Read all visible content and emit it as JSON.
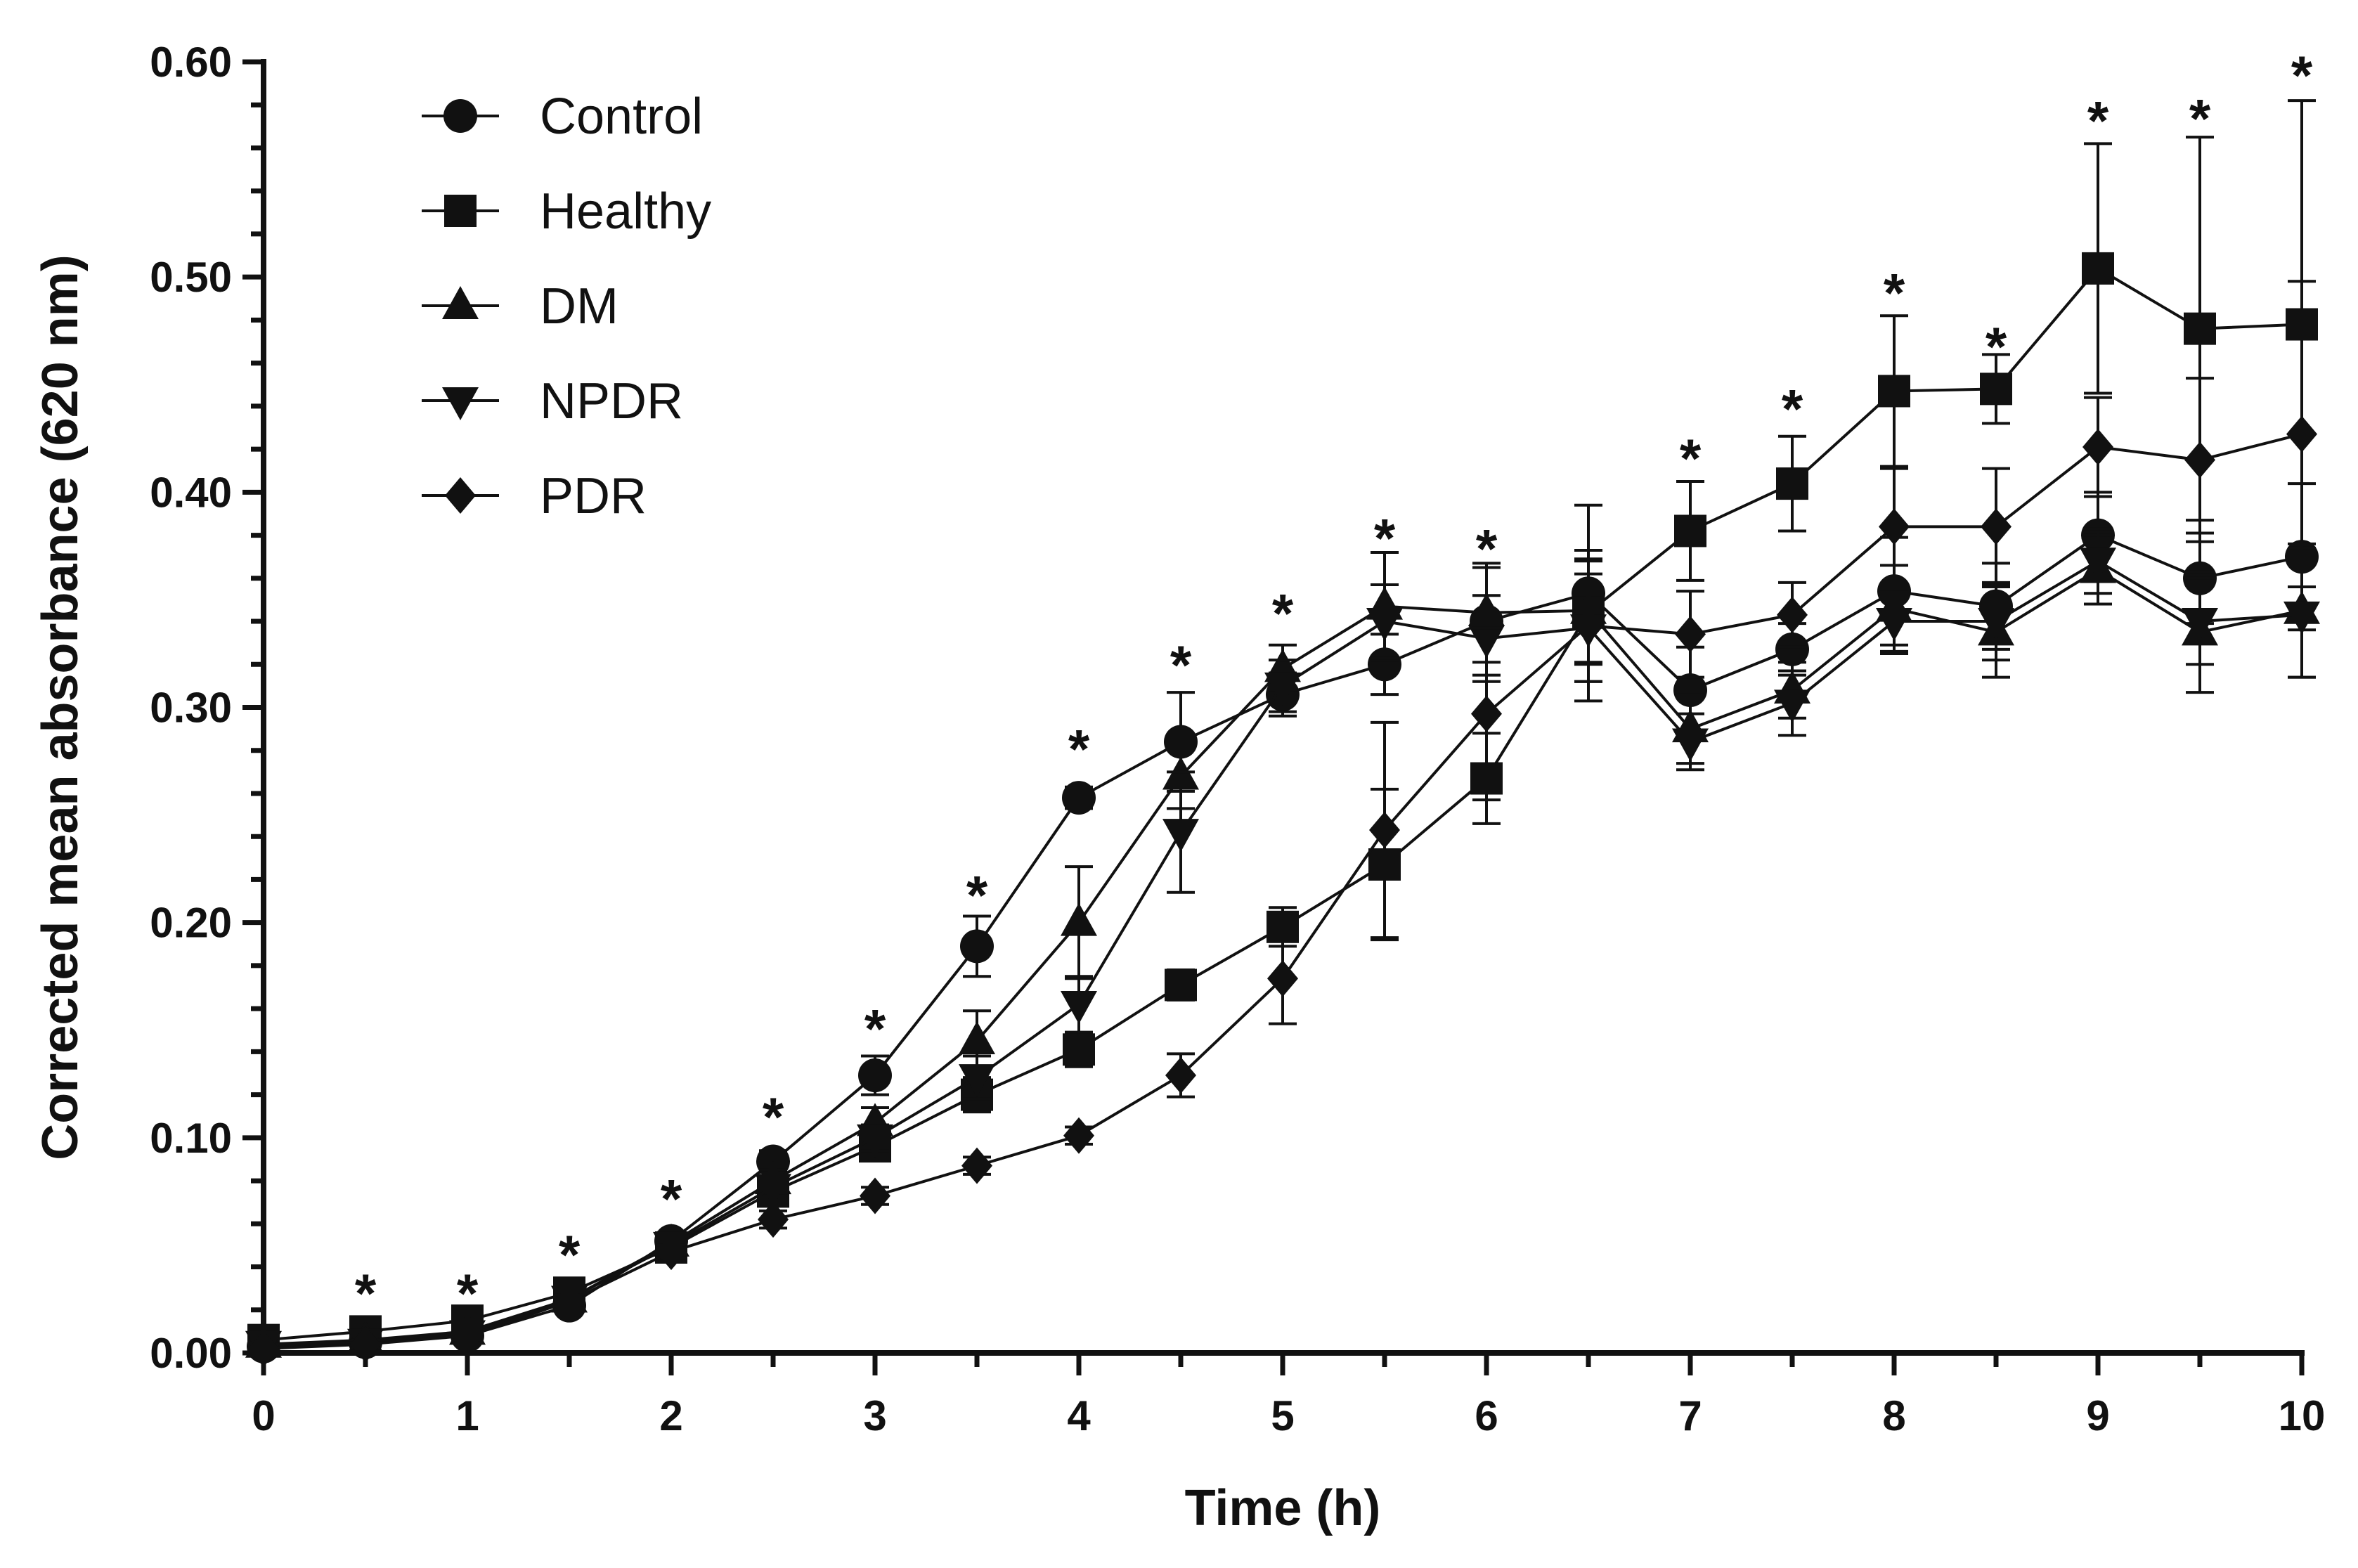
{
  "chart_data": {
    "type": "line",
    "title": "",
    "xlabel": "Time (h)",
    "ylabel": "Corrected mean absorbance (620 nm)",
    "xlim": [
      0,
      10
    ],
    "ylim": [
      0,
      0.6
    ],
    "xticks": [
      "0",
      "1",
      "2",
      "3",
      "4",
      "5",
      "6",
      "7",
      "8",
      "9",
      "10"
    ],
    "yticks": [
      "0.00",
      "0.10",
      "0.20",
      "0.30",
      "0.40",
      "0.50",
      "0.60"
    ],
    "grid": false,
    "legend_position": "top-left",
    "x": [
      0,
      0.5,
      1,
      1.5,
      2,
      2.5,
      3,
      3.5,
      4,
      4.5,
      5,
      5.5,
      6,
      6.5,
      7,
      7.5,
      8,
      8.5,
      9,
      9.5,
      10
    ],
    "series": [
      {
        "name": "Control",
        "marker": "circle",
        "values": [
          0.003,
          0.005,
          0.008,
          0.022,
          0.052,
          0.089,
          0.129,
          0.189,
          0.258,
          0.284,
          0.306,
          0.32,
          0.34,
          0.353,
          0.308,
          0.327,
          0.354,
          0.347,
          0.38,
          0.36,
          0.37
        ],
        "errors": [
          0.002,
          0.002,
          0.002,
          0.003,
          0.004,
          0.005,
          0.009,
          0.014,
          0.005,
          0.023,
          0.01,
          0.014,
          0.025,
          0.041,
          0.02,
          0.012,
          0.025,
          0.02,
          0.02,
          0.021,
          0.034
        ]
      },
      {
        "name": "Healthy",
        "marker": "square",
        "values": [
          0.006,
          0.01,
          0.015,
          0.028,
          0.049,
          0.075,
          0.096,
          0.12,
          0.141,
          0.171,
          0.198,
          0.227,
          0.267,
          0.344,
          0.382,
          0.404,
          0.447,
          0.448,
          0.504,
          0.476,
          0.478
        ],
        "errors": [
          0.002,
          0.002,
          0.002,
          0.003,
          0.003,
          0.005,
          0.006,
          0.008,
          0.008,
          0.007,
          0.009,
          0.035,
          0.021,
          0.024,
          0.023,
          0.022,
          0.035,
          0.016,
          0.058,
          0.089,
          0.104
        ]
      },
      {
        "name": "DM",
        "marker": "triangle-up",
        "values": [
          0.004,
          0.006,
          0.01,
          0.025,
          0.051,
          0.08,
          0.107,
          0.145,
          0.2,
          0.268,
          0.318,
          0.347,
          0.344,
          0.345,
          0.29,
          0.308,
          0.346,
          0.335,
          0.364,
          0.335,
          0.345
        ],
        "errors": [
          0.002,
          0.002,
          0.002,
          0.003,
          0.003,
          0.005,
          0.007,
          0.014,
          0.026,
          0.015,
          0.011,
          0.025,
          0.023,
          0.024,
          0.016,
          0.013,
          0.02,
          0.021,
          0.016,
          0.028,
          0.031
        ]
      },
      {
        "name": "NPDR",
        "marker": "triangle-down",
        "values": [
          0.004,
          0.005,
          0.009,
          0.025,
          0.05,
          0.077,
          0.1,
          0.128,
          0.162,
          0.242,
          0.31,
          0.34,
          0.332,
          0.337,
          0.284,
          0.302,
          0.34,
          0.34,
          0.368,
          0.34,
          0.343
        ],
        "errors": [
          0.002,
          0.002,
          0.002,
          0.003,
          0.003,
          0.005,
          0.006,
          0.01,
          0.013,
          0.028,
          0.012,
          0.017,
          0.02,
          0.025,
          0.013,
          0.015,
          0.015,
          0.018,
          0.015,
          0.02,
          0.029
        ]
      },
      {
        "name": "PDR",
        "marker": "diamond",
        "values": [
          0.002,
          0.004,
          0.008,
          0.024,
          0.047,
          0.062,
          0.073,
          0.087,
          0.101,
          0.129,
          0.174,
          0.243,
          0.297,
          0.338,
          0.334,
          0.343,
          0.384,
          0.384,
          0.421,
          0.415,
          0.427
        ],
        "errors": [
          0.001,
          0.002,
          0.002,
          0.003,
          0.003,
          0.004,
          0.004,
          0.004,
          0.004,
          0.01,
          0.021,
          0.05,
          0.04,
          0.035,
          0.02,
          0.015,
          0.027,
          0.027,
          0.023,
          0.038,
          0.071
        ]
      }
    ],
    "significance": {
      "symbol": "*",
      "x": [
        0.5,
        1,
        1.5,
        2,
        2.5,
        3,
        3.5,
        4,
        4.5,
        5,
        5.5,
        6,
        7,
        7.5,
        8,
        8.5,
        9,
        9.5,
        10
      ],
      "y": [
        0.032,
        0.032,
        0.05,
        0.076,
        0.114,
        0.155,
        0.217,
        0.285,
        0.324,
        0.348,
        0.383,
        0.378,
        0.42,
        0.443,
        0.497,
        0.472,
        0.577,
        0.578,
        0.598
      ]
    }
  }
}
